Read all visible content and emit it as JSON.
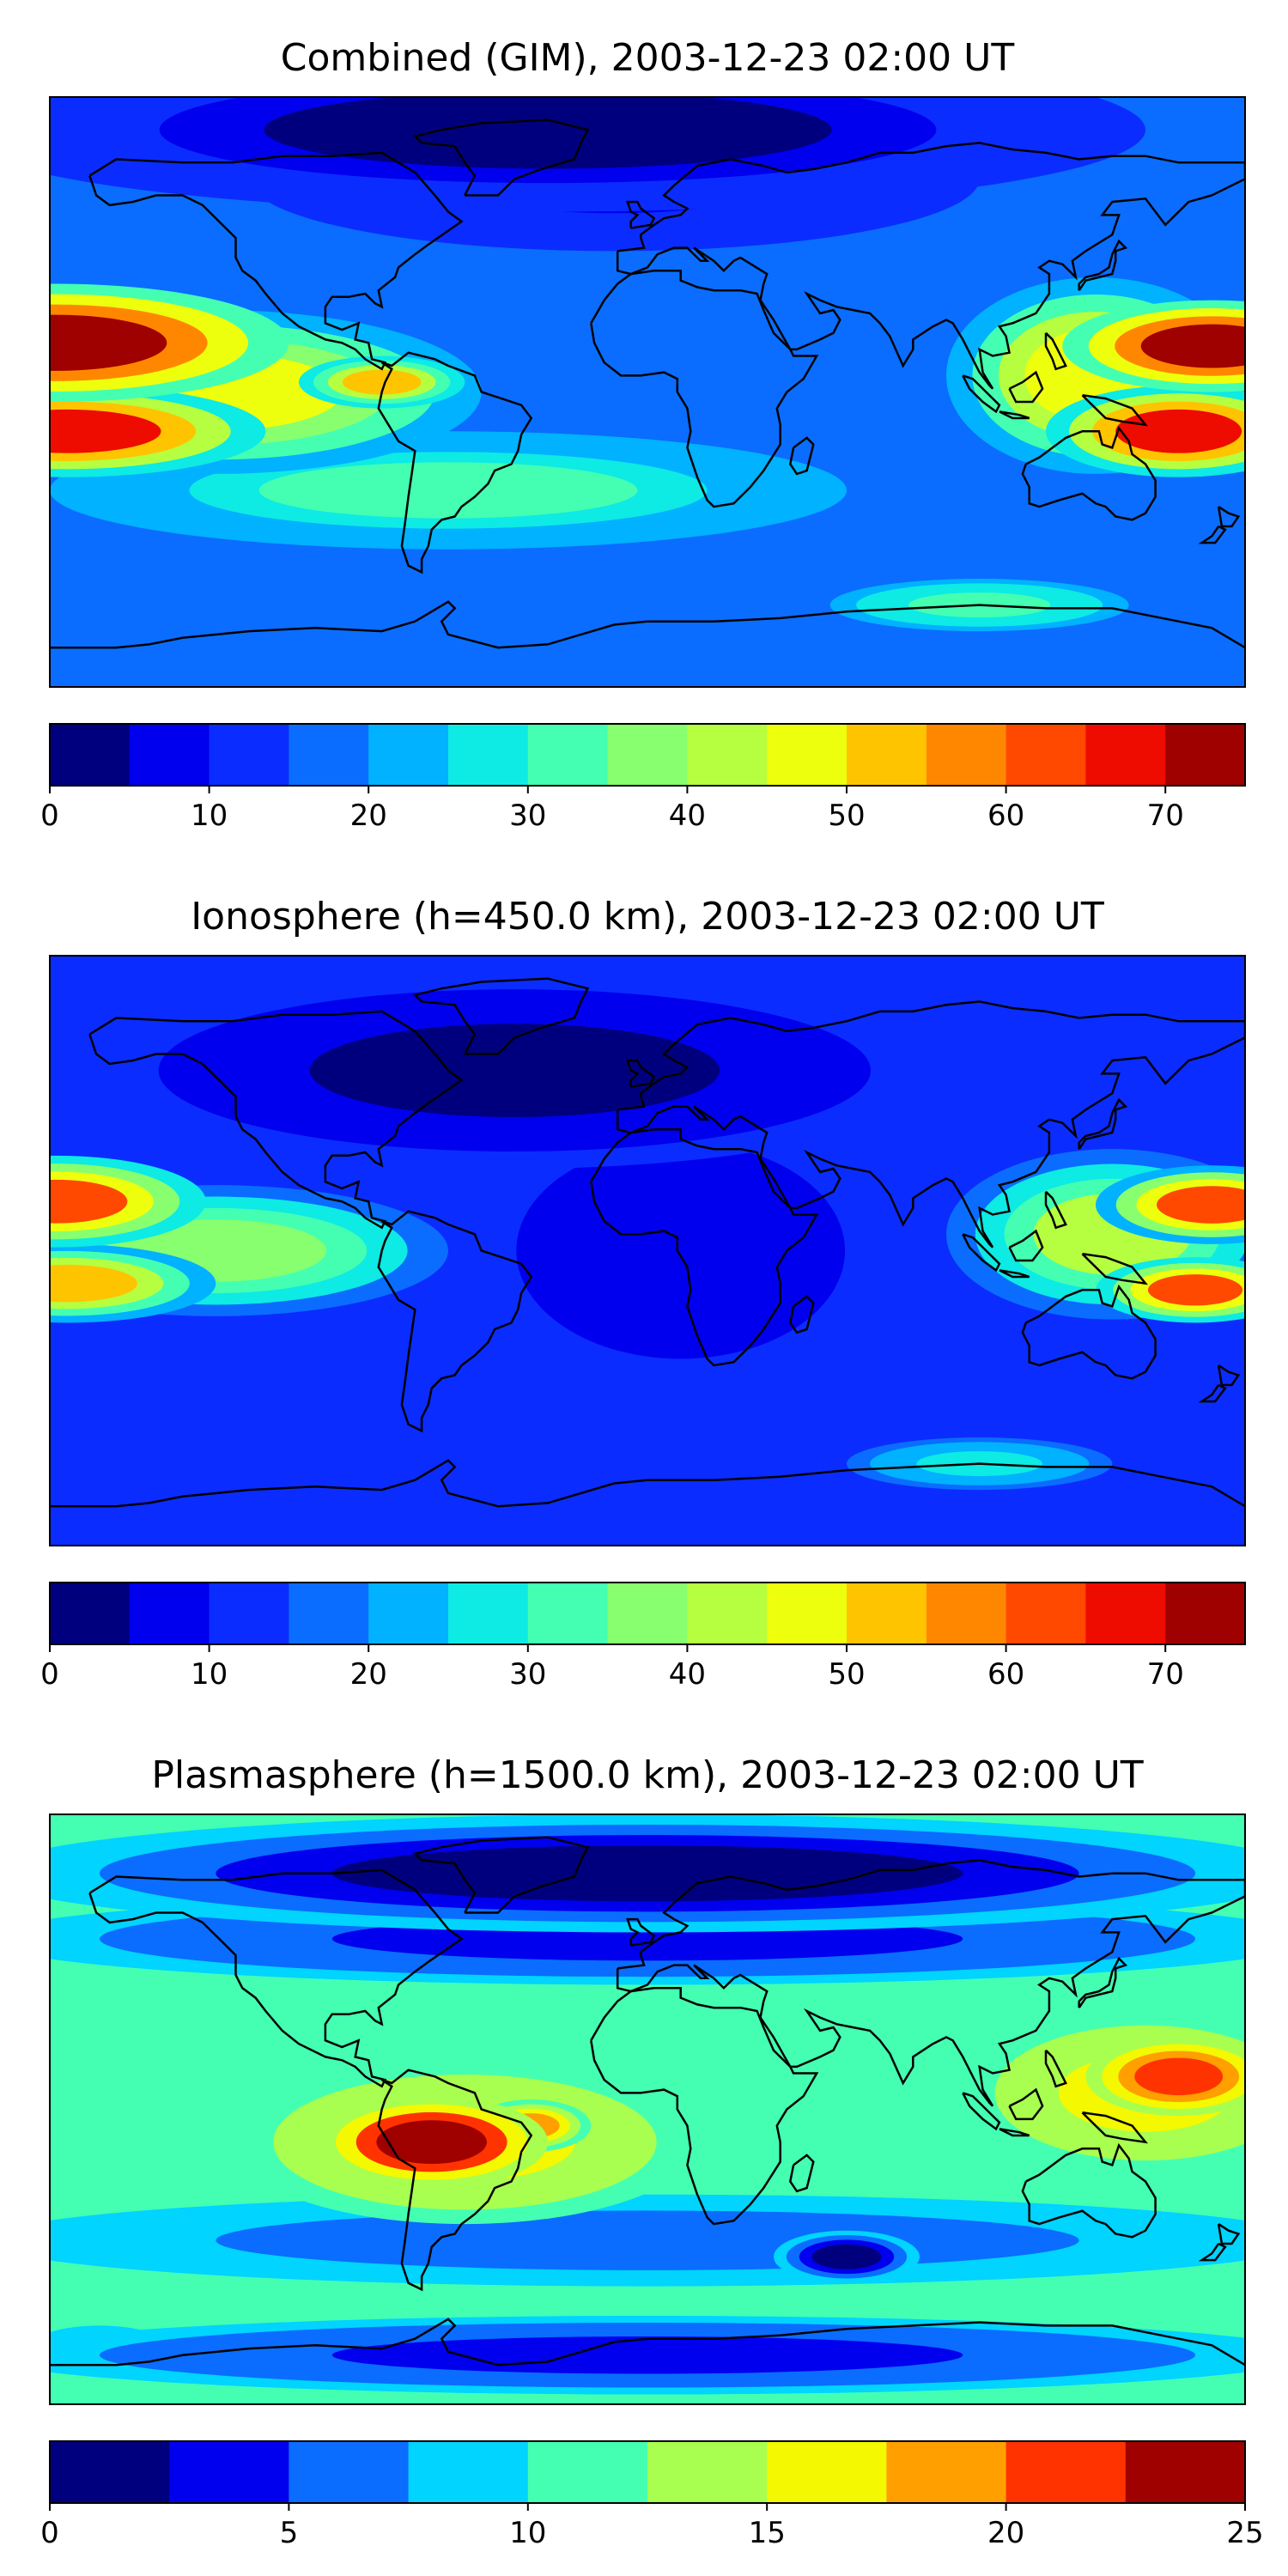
{
  "panels": [
    {
      "title": "Combined (GIM), 2003-12-23 02:00 UT",
      "colorbar": {
        "min": 0,
        "max": 75,
        "step": 5,
        "tick_labels": [
          "0",
          "10",
          "20",
          "30",
          "40",
          "50",
          "60",
          "70"
        ],
        "tick_values": [
          0,
          10,
          20,
          30,
          40,
          50,
          60,
          70
        ]
      },
      "background_value": 17,
      "features": [
        {
          "name": "arctic-low",
          "lon": -30,
          "lat": 80,
          "value": 4,
          "rx": 180,
          "ry": 25
        },
        {
          "name": "north-atlantic-low",
          "lon": -10,
          "lat": 65,
          "value": 8,
          "rx": 110,
          "ry": 22
        },
        {
          "name": "pacific-crest-north",
          "lon": -178,
          "lat": 15,
          "value": 73,
          "rx": 70,
          "ry": 18
        },
        {
          "name": "pacific-crest-south",
          "lon": -175,
          "lat": -12,
          "value": 66,
          "rx": 60,
          "ry": 14
        },
        {
          "name": "pacific-band",
          "lon": -130,
          "lat": 0,
          "value": 45,
          "rx": 80,
          "ry": 25
        },
        {
          "name": "central-america-spot",
          "lon": -80,
          "lat": 3,
          "value": 51,
          "rx": 25,
          "ry": 8
        },
        {
          "name": "west-pacific-crest",
          "lon": 170,
          "lat": 14,
          "value": 73,
          "rx": 45,
          "ry": 14
        },
        {
          "name": "australia-crest",
          "lon": 160,
          "lat": -12,
          "value": 65,
          "rx": 40,
          "ry": 14
        },
        {
          "name": "asia-band",
          "lon": 135,
          "lat": 5,
          "value": 48,
          "rx": 45,
          "ry": 30
        },
        {
          "name": "southern-mid",
          "lon": -60,
          "lat": -30,
          "value": 30,
          "rx": 120,
          "ry": 18
        },
        {
          "name": "antarctic-spot",
          "lon": 100,
          "lat": -65,
          "value": 34,
          "rx": 45,
          "ry": 8
        }
      ]
    },
    {
      "title": "Ionosphere  (h=450.0 km), 2003-12-23 02:00 UT",
      "colorbar": {
        "min": 0,
        "max": 75,
        "step": 5,
        "tick_labels": [
          "0",
          "10",
          "20",
          "30",
          "40",
          "50",
          "60",
          "70"
        ],
        "tick_values": [
          0,
          10,
          20,
          30,
          40,
          50,
          60,
          70
        ]
      },
      "background_value": 13,
      "features": [
        {
          "name": "northern-low",
          "lon": -40,
          "lat": 55,
          "value": 4,
          "rx": 130,
          "ry": 30
        },
        {
          "name": "africa-low",
          "lon": 10,
          "lat": 0,
          "value": 6,
          "rx": 60,
          "ry": 40
        },
        {
          "name": "pacific-crest-north",
          "lon": -178,
          "lat": 15,
          "value": 62,
          "rx": 45,
          "ry": 14
        },
        {
          "name": "pacific-crest-south",
          "lon": -175,
          "lat": -10,
          "value": 54,
          "rx": 45,
          "ry": 12
        },
        {
          "name": "pacific-band",
          "lon": -130,
          "lat": 0,
          "value": 38,
          "rx": 70,
          "ry": 20
        },
        {
          "name": "west-pacific-crest",
          "lon": 170,
          "lat": 14,
          "value": 60,
          "rx": 35,
          "ry": 12
        },
        {
          "name": "australia-crest",
          "lon": 165,
          "lat": -12,
          "value": 62,
          "rx": 30,
          "ry": 10
        },
        {
          "name": "asia-band",
          "lon": 140,
          "lat": 5,
          "value": 40,
          "rx": 50,
          "ry": 26
        },
        {
          "name": "antarctic-spot",
          "lon": 100,
          "lat": -65,
          "value": 28,
          "rx": 40,
          "ry": 8
        }
      ]
    },
    {
      "title": "Plasmasphere (h=1500.0 km), 2003-12-23 02:00 UT",
      "colorbar": {
        "min": 0,
        "max": 25,
        "step": 2.5,
        "tick_labels": [
          "0",
          "5",
          "10",
          "15",
          "20",
          "25"
        ],
        "tick_values": [
          0,
          5,
          10,
          15,
          20,
          25
        ]
      },
      "background_value": 10,
      "features": [
        {
          "name": "northern-low",
          "lon": 0,
          "lat": 72,
          "value": 2,
          "rx": 200,
          "ry": 18
        },
        {
          "name": "northern-band",
          "lon": 0,
          "lat": 52,
          "value": 4,
          "rx": 200,
          "ry": 14
        },
        {
          "name": "south-america-peak",
          "lon": -65,
          "lat": -10,
          "value": 24,
          "rx": 35,
          "ry": 14
        },
        {
          "name": "south-america-band",
          "lon": -55,
          "lat": -10,
          "value": 16,
          "rx": 70,
          "ry": 25
        },
        {
          "name": "atlantic-spot",
          "lon": -35,
          "lat": -5,
          "value": 19,
          "rx": 18,
          "ry": 8
        },
        {
          "name": "pacific-peak",
          "lon": 160,
          "lat": 10,
          "value": 21,
          "rx": 28,
          "ry": 12
        },
        {
          "name": "pacific-band",
          "lon": 150,
          "lat": 5,
          "value": 15,
          "rx": 55,
          "ry": 25
        },
        {
          "name": "southern-band",
          "lon": 0,
          "lat": -40,
          "value": 6,
          "rx": 200,
          "ry": 14
        },
        {
          "name": "indian-ocean-low",
          "lon": 60,
          "lat": -45,
          "value": 1,
          "rx": 22,
          "ry": 8
        },
        {
          "name": "antarctic-band",
          "lon": 0,
          "lat": -75,
          "value": 4,
          "rx": 200,
          "ry": 12
        },
        {
          "name": "antarctic-spot",
          "lon": -165,
          "lat": -72,
          "value": 8,
          "rx": 20,
          "ry": 6
        }
      ]
    }
  ],
  "colormap": [
    "#00007f",
    "#0000ee",
    "#0b2cff",
    "#0a6dff",
    "#00b2ff",
    "#0eeae4",
    "#44ffb2",
    "#88ff6f",
    "#b6ff40",
    "#eeff0d",
    "#ffc400",
    "#ff8700",
    "#ff4800",
    "#ee0b00",
    "#9f0000"
  ],
  "colormap_plasma": [
    "#00007f",
    "#0000ee",
    "#0a6dff",
    "#00d4ff",
    "#44ffb2",
    "#a8ff4f",
    "#f4f800",
    "#ff9f00",
    "#ff3300",
    "#9f0000"
  ]
}
